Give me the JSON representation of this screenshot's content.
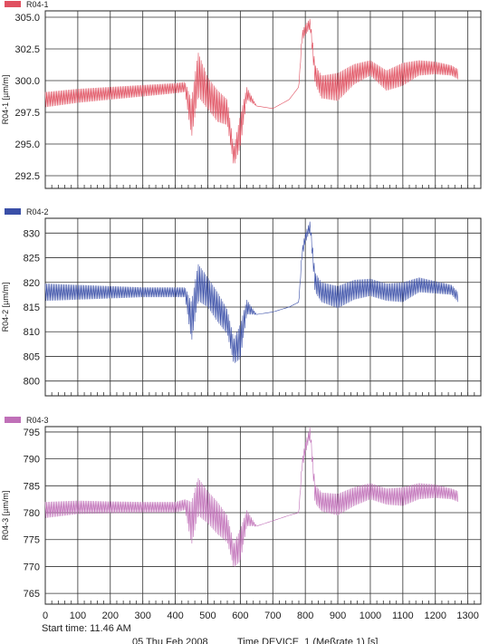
{
  "chart_data": [
    {
      "type": "line",
      "legend": "R04-1",
      "color": "#e05060",
      "ylabel": "R04-1 [µm/m]",
      "ylim": [
        291.5,
        305.5
      ],
      "yticks": [
        292.5,
        295.0,
        297.5,
        300.0,
        302.5,
        305.0
      ],
      "ytick_labels": [
        "292.5",
        "295.0",
        "297.5",
        "300.0",
        "302.5",
        "305.0"
      ],
      "xlim": [
        0,
        1340
      ],
      "xticks": [
        0,
        100,
        200,
        300,
        400,
        500,
        600,
        700,
        800,
        900,
        1000,
        1100,
        1200,
        1300
      ],
      "grid": true,
      "x": [
        0,
        100,
        200,
        300,
        400,
        430,
        450,
        470,
        500,
        530,
        560,
        580,
        600,
        620,
        650,
        700,
        750,
        780,
        790,
        800,
        815,
        830,
        850,
        900,
        950,
        1000,
        1050,
        1100,
        1150,
        1200,
        1250,
        1270
      ],
      "y": [
        298.5,
        298.8,
        299.0,
        299.2,
        299.4,
        299.5,
        297.0,
        300.5,
        299.0,
        298.0,
        297.5,
        294.0,
        296.0,
        299.0,
        298.0,
        297.8,
        298.5,
        299.5,
        303.5,
        304.0,
        304.5,
        300.5,
        299.5,
        299.5,
        300.5,
        301.0,
        300.0,
        300.5,
        301.0,
        301.0,
        300.8,
        300.5
      ],
      "amplitude": [
        1.2,
        1.1,
        1.0,
        0.9,
        0.8,
        0.8,
        3.0,
        3.5,
        2.5,
        2.5,
        2.0,
        1.5,
        2.5,
        1.0,
        0.0,
        0.0,
        0.0,
        0.0,
        0.8,
        0.8,
        0.8,
        1.5,
        1.8,
        2.2,
        1.6,
        1.2,
        1.6,
        1.8,
        1.2,
        1.0,
        0.8,
        0.8
      ]
    },
    {
      "type": "line",
      "legend": "R04-2",
      "color": "#3a4fa8",
      "ylabel": "R04-2 [µm/m]",
      "ylim": [
        797,
        833
      ],
      "yticks": [
        800,
        805,
        810,
        815,
        820,
        825,
        830
      ],
      "ytick_labels": [
        "800",
        "805",
        "810",
        "815",
        "820",
        "825",
        "830"
      ],
      "xlim": [
        0,
        1340
      ],
      "xticks": [
        0,
        100,
        200,
        300,
        400,
        500,
        600,
        700,
        800,
        900,
        1000,
        1100,
        1200,
        1300
      ],
      "grid": true,
      "x": [
        0,
        100,
        200,
        300,
        400,
        430,
        450,
        470,
        500,
        530,
        560,
        580,
        600,
        620,
        650,
        700,
        750,
        780,
        790,
        800,
        815,
        830,
        850,
        900,
        950,
        1000,
        1050,
        1100,
        1150,
        1200,
        1250,
        1270
      ],
      "y": [
        818.0,
        818.0,
        818.0,
        818.0,
        818.0,
        818.0,
        812.0,
        820.0,
        818.0,
        815.0,
        812.0,
        806.0,
        808.0,
        815.0,
        813.5,
        814.0,
        815.0,
        816.0,
        826.0,
        829.0,
        831.5,
        820.0,
        818.0,
        817.0,
        818.5,
        819.0,
        818.0,
        818.0,
        819.5,
        819.0,
        818.5,
        817.0
      ],
      "amplitude": [
        3.5,
        3.0,
        2.5,
        2.0,
        2.0,
        2.0,
        8.0,
        7.5,
        6.0,
        6.0,
        5.0,
        5.0,
        7.0,
        3.0,
        0.0,
        0.0,
        0.0,
        0.0,
        2.0,
        2.0,
        2.0,
        4.0,
        4.0,
        4.5,
        4.0,
        3.5,
        3.5,
        4.0,
        3.0,
        2.5,
        2.0,
        2.0
      ]
    },
    {
      "type": "line",
      "legend": "R04-3",
      "color": "#c070b8",
      "ylabel": "R04-3 [µm/m]",
      "ylim": [
        763,
        796
      ],
      "yticks": [
        765,
        770,
        775,
        780,
        785,
        790,
        795
      ],
      "ytick_labels": [
        "765",
        "770",
        "775",
        "780",
        "785",
        "790",
        "795"
      ],
      "xlim": [
        0,
        1340
      ],
      "xticks": [
        0,
        100,
        200,
        300,
        400,
        500,
        600,
        700,
        800,
        900,
        1000,
        1100,
        1200,
        1300
      ],
      "xtick_labels": [
        "0",
        "100",
        "200",
        "300",
        "400",
        "500",
        "600",
        "700",
        "800",
        "900",
        "1000",
        "1100",
        "1200",
        "1300"
      ],
      "grid": true,
      "x": [
        0,
        100,
        200,
        300,
        400,
        430,
        450,
        470,
        500,
        530,
        560,
        580,
        600,
        620,
        650,
        700,
        750,
        780,
        790,
        800,
        815,
        830,
        850,
        900,
        950,
        1000,
        1050,
        1100,
        1150,
        1200,
        1250,
        1270
      ],
      "y": [
        780.5,
        781.0,
        781.0,
        781.0,
        781.0,
        781.5,
        778.0,
        783.0,
        781.0,
        779.0,
        777.0,
        772.0,
        774.0,
        779.0,
        777.5,
        778.5,
        779.5,
        780.0,
        789.0,
        792.0,
        795.0,
        783.5,
        782.0,
        781.5,
        783.0,
        784.0,
        783.0,
        783.0,
        784.0,
        784.0,
        783.5,
        783.0
      ],
      "amplitude": [
        3.0,
        2.5,
        2.2,
        2.0,
        2.0,
        2.0,
        8.0,
        7.0,
        6.0,
        6.0,
        5.0,
        4.5,
        6.0,
        3.0,
        0.0,
        0.0,
        0.0,
        0.0,
        2.0,
        2.0,
        2.0,
        3.5,
        3.5,
        4.0,
        3.5,
        3.0,
        3.0,
        3.5,
        3.0,
        2.5,
        2.0,
        2.0
      ]
    }
  ],
  "footer": {
    "start_time": "Start time: 11.46 AM",
    "date": "05 Thu   Feb 2008",
    "xlabel": "Time DEVICE_1 (Meßrate 1) [s]"
  }
}
